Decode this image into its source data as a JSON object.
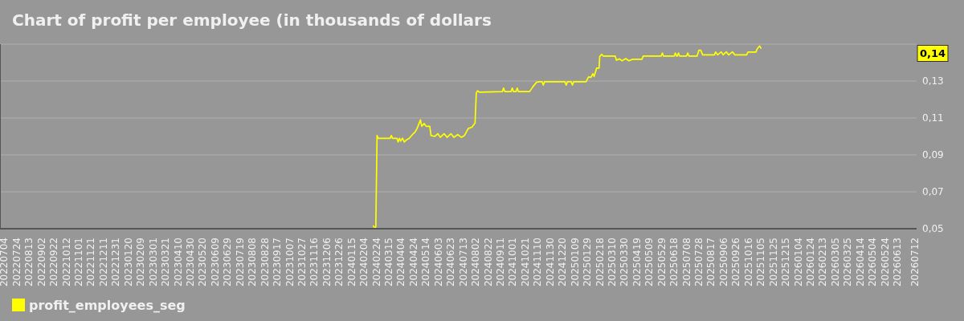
{
  "chart_data": {
    "type": "line",
    "title": "Chart of profit per employee (in thousands of dollars",
    "x": [
      "2024-02-19",
      "2024-02-21",
      "2024-02-23",
      "2024-02-25",
      "2024-02-27",
      "2024-03-17",
      "2024-03-19",
      "2024-03-21",
      "2024-03-28",
      "2024-03-30",
      "2024-04-01",
      "2024-04-03",
      "2024-04-06",
      "2024-04-09",
      "2024-04-12",
      "2024-04-17",
      "2024-04-22",
      "2024-04-26",
      "2024-04-29",
      "2024-05-01",
      "2024-05-05",
      "2024-05-07",
      "2024-05-11",
      "2024-05-14",
      "2024-05-20",
      "2024-05-22",
      "2024-05-28",
      "2024-06-02",
      "2024-06-06",
      "2024-06-12",
      "2024-06-17",
      "2024-06-23",
      "2024-06-28",
      "2024-07-04",
      "2024-07-10",
      "2024-07-15",
      "2024-07-21",
      "2024-07-27",
      "2024-08-01",
      "2024-08-03",
      "2024-08-05",
      "2024-08-08",
      "2024-09-14",
      "2024-09-16",
      "2024-09-18",
      "2024-09-28",
      "2024-09-30",
      "2024-10-02",
      "2024-10-06",
      "2024-10-08",
      "2024-10-10",
      "2024-10-28",
      "2024-11-02",
      "2024-11-08",
      "2024-11-12",
      "2024-11-17",
      "2024-11-19",
      "2024-11-21",
      "2024-12-24",
      "2024-12-26",
      "2024-12-28",
      "2025-01-03",
      "2025-01-05",
      "2025-01-07",
      "2025-01-27",
      "2025-01-31",
      "2025-02-04",
      "2025-02-07",
      "2025-02-09",
      "2025-02-13",
      "2025-02-17",
      "2025-02-18",
      "2025-02-21",
      "2025-02-24",
      "2025-03-15",
      "2025-03-17",
      "2025-03-22",
      "2025-03-26",
      "2025-04-01",
      "2025-04-06",
      "2025-04-12",
      "2025-04-27",
      "2025-04-29",
      "2025-05-28",
      "2025-05-30",
      "2025-06-01",
      "2025-06-18",
      "2025-06-20",
      "2025-06-22",
      "2025-06-23",
      "2025-06-25",
      "2025-06-27",
      "2025-07-08",
      "2025-07-10",
      "2025-07-12",
      "2025-07-25",
      "2025-07-28",
      "2025-07-31",
      "2025-08-03",
      "2025-08-22",
      "2025-08-24",
      "2025-08-27",
      "2025-09-02",
      "2025-09-05",
      "2025-09-10",
      "2025-09-14",
      "2025-09-20",
      "2025-09-24",
      "2025-10-13",
      "2025-10-15",
      "2025-10-28",
      "2025-10-30",
      "2025-11-03",
      "2025-11-05"
    ],
    "series": [
      {
        "name": "profit_employees_seg",
        "color": "#ffff00",
        "values": [
          0.0515,
          0.0505,
          0.051,
          0.1005,
          0.099,
          0.099,
          0.1005,
          0.099,
          0.099,
          0.097,
          0.099,
          0.0975,
          0.099,
          0.097,
          0.098,
          0.099,
          0.101,
          0.1022,
          0.104,
          0.1055,
          0.109,
          0.1055,
          0.107,
          0.1055,
          0.1055,
          0.1005,
          0.1,
          0.1015,
          0.0995,
          0.1015,
          0.0995,
          0.1015,
          0.0995,
          0.101,
          0.0995,
          0.1005,
          0.1043,
          0.105,
          0.1073,
          0.1235,
          0.1247,
          0.124,
          0.1243,
          0.1262,
          0.1243,
          0.1243,
          0.1262,
          0.1243,
          0.1243,
          0.1262,
          0.1243,
          0.1243,
          0.1268,
          0.1293,
          0.1296,
          0.1296,
          0.1278,
          0.1296,
          0.1296,
          0.1278,
          0.1296,
          0.1296,
          0.1278,
          0.1296,
          0.1296,
          0.1322,
          0.132,
          0.134,
          0.1325,
          0.137,
          0.137,
          0.1432,
          0.1445,
          0.1435,
          0.1435,
          0.1413,
          0.142,
          0.141,
          0.1422,
          0.141,
          0.1418,
          0.1418,
          0.1435,
          0.1435,
          0.1452,
          0.1435,
          0.1435,
          0.1452,
          0.1435,
          0.1435,
          0.1452,
          0.1435,
          0.1435,
          0.1452,
          0.1435,
          0.1435,
          0.1467,
          0.1467,
          0.1442,
          0.1442,
          0.1458,
          0.1442,
          0.1458,
          0.1442,
          0.1458,
          0.1442,
          0.1458,
          0.1442,
          0.1442,
          0.1457,
          0.1457,
          0.1475,
          0.149,
          0.1478
        ]
      }
    ],
    "xlim": [
      "2022-06-27",
      "2026-07-14"
    ],
    "xticks": [
      {
        "value": "2022-07-04",
        "label": "20220704"
      },
      {
        "value": "2022-07-24",
        "label": "20220724"
      },
      {
        "value": "2022-08-13",
        "label": "20220813"
      },
      {
        "value": "2022-09-02",
        "label": "20220902"
      },
      {
        "value": "2022-09-22",
        "label": "20220922"
      },
      {
        "value": "2022-10-12",
        "label": "20221012"
      },
      {
        "value": "2022-11-01",
        "label": "20221101"
      },
      {
        "value": "2022-11-21",
        "label": "20221121"
      },
      {
        "value": "2022-12-11",
        "label": "20221211"
      },
      {
        "value": "2022-12-31",
        "label": "20221231"
      },
      {
        "value": "2023-01-20",
        "label": "20230120"
      },
      {
        "value": "2023-02-09",
        "label": "20230209"
      },
      {
        "value": "2023-03-01",
        "label": "20230301"
      },
      {
        "value": "2023-03-21",
        "label": "20230321"
      },
      {
        "value": "2023-04-10",
        "label": "20230410"
      },
      {
        "value": "2023-04-30",
        "label": "20230430"
      },
      {
        "value": "2023-05-20",
        "label": "20230520"
      },
      {
        "value": "2023-06-09",
        "label": "20230609"
      },
      {
        "value": "2023-06-29",
        "label": "20230629"
      },
      {
        "value": "2023-07-19",
        "label": "20230719"
      },
      {
        "value": "2023-08-08",
        "label": "20230808"
      },
      {
        "value": "2023-08-28",
        "label": "20230828"
      },
      {
        "value": "2023-09-17",
        "label": "20230917"
      },
      {
        "value": "2023-10-07",
        "label": "20231007"
      },
      {
        "value": "2023-10-27",
        "label": "20231027"
      },
      {
        "value": "2023-11-16",
        "label": "20231116"
      },
      {
        "value": "2023-12-06",
        "label": "20231206"
      },
      {
        "value": "2023-12-26",
        "label": "20231226"
      },
      {
        "value": "2024-01-15",
        "label": "20240115"
      },
      {
        "value": "2024-02-04",
        "label": "20240204"
      },
      {
        "value": "2024-02-24",
        "label": "20240224"
      },
      {
        "value": "2024-03-15",
        "label": "20240315"
      },
      {
        "value": "2024-04-04",
        "label": "20240404"
      },
      {
        "value": "2024-04-24",
        "label": "20240424"
      },
      {
        "value": "2024-05-14",
        "label": "20240514"
      },
      {
        "value": "2024-06-03",
        "label": "20240603"
      },
      {
        "value": "2024-06-23",
        "label": "20240623"
      },
      {
        "value": "2024-07-13",
        "label": "20240713"
      },
      {
        "value": "2024-08-02",
        "label": "20240802"
      },
      {
        "value": "2024-08-22",
        "label": "20240822"
      },
      {
        "value": "2024-09-11",
        "label": "20240911"
      },
      {
        "value": "2024-10-01",
        "label": "20241001"
      },
      {
        "value": "2024-10-21",
        "label": "20241021"
      },
      {
        "value": "2024-11-10",
        "label": "20241110"
      },
      {
        "value": "2024-11-30",
        "label": "20241130"
      },
      {
        "value": "2024-12-20",
        "label": "20241220"
      },
      {
        "value": "2025-01-09",
        "label": "20250109"
      },
      {
        "value": "2025-01-29",
        "label": "20250129"
      },
      {
        "value": "2025-02-18",
        "label": "20250218"
      },
      {
        "value": "2025-03-10",
        "label": "20250310"
      },
      {
        "value": "2025-03-30",
        "label": "20250330"
      },
      {
        "value": "2025-04-19",
        "label": "20250419"
      },
      {
        "value": "2025-05-09",
        "label": "20250509"
      },
      {
        "value": "2025-05-29",
        "label": "20250529"
      },
      {
        "value": "2025-06-18",
        "label": "20250618"
      },
      {
        "value": "2025-07-08",
        "label": "20250708"
      },
      {
        "value": "2025-07-28",
        "label": "20250728"
      },
      {
        "value": "2025-08-17",
        "label": "20250817"
      },
      {
        "value": "2025-09-06",
        "label": "20250906"
      },
      {
        "value": "2025-09-26",
        "label": "20250926"
      },
      {
        "value": "2025-10-16",
        "label": "20251016"
      },
      {
        "value": "2025-11-05",
        "label": "20251105"
      },
      {
        "value": "2025-11-25",
        "label": "20251125"
      },
      {
        "value": "2025-12-15",
        "label": "20251215"
      },
      {
        "value": "2026-01-04",
        "label": "20260104"
      },
      {
        "value": "2026-01-24",
        "label": "20260124"
      },
      {
        "value": "2026-02-13",
        "label": "20260213"
      },
      {
        "value": "2026-03-05",
        "label": "20260305"
      },
      {
        "value": "2026-03-25",
        "label": "20260325"
      },
      {
        "value": "2026-04-14",
        "label": "20260414"
      },
      {
        "value": "2026-05-04",
        "label": "20260504"
      },
      {
        "value": "2026-05-24",
        "label": "20260524"
      },
      {
        "value": "2026-06-13",
        "label": "20260613"
      },
      {
        "value": "2026-07-12",
        "label": "20260712"
      }
    ],
    "ylim": [
      0.05,
      0.15
    ],
    "yticks": [
      {
        "value": 0.05,
        "label": "0,05"
      },
      {
        "value": 0.07,
        "label": "0,07"
      },
      {
        "value": 0.09,
        "label": "0,09"
      },
      {
        "value": 0.11,
        "label": "0,11"
      },
      {
        "value": 0.13,
        "label": "0,13"
      },
      {
        "value": 0.15,
        "label": null
      }
    ],
    "grid": "y",
    "legend": "bottom left",
    "annotations": [
      {
        "text": "0,14",
        "y": 0.145
      }
    ]
  }
}
